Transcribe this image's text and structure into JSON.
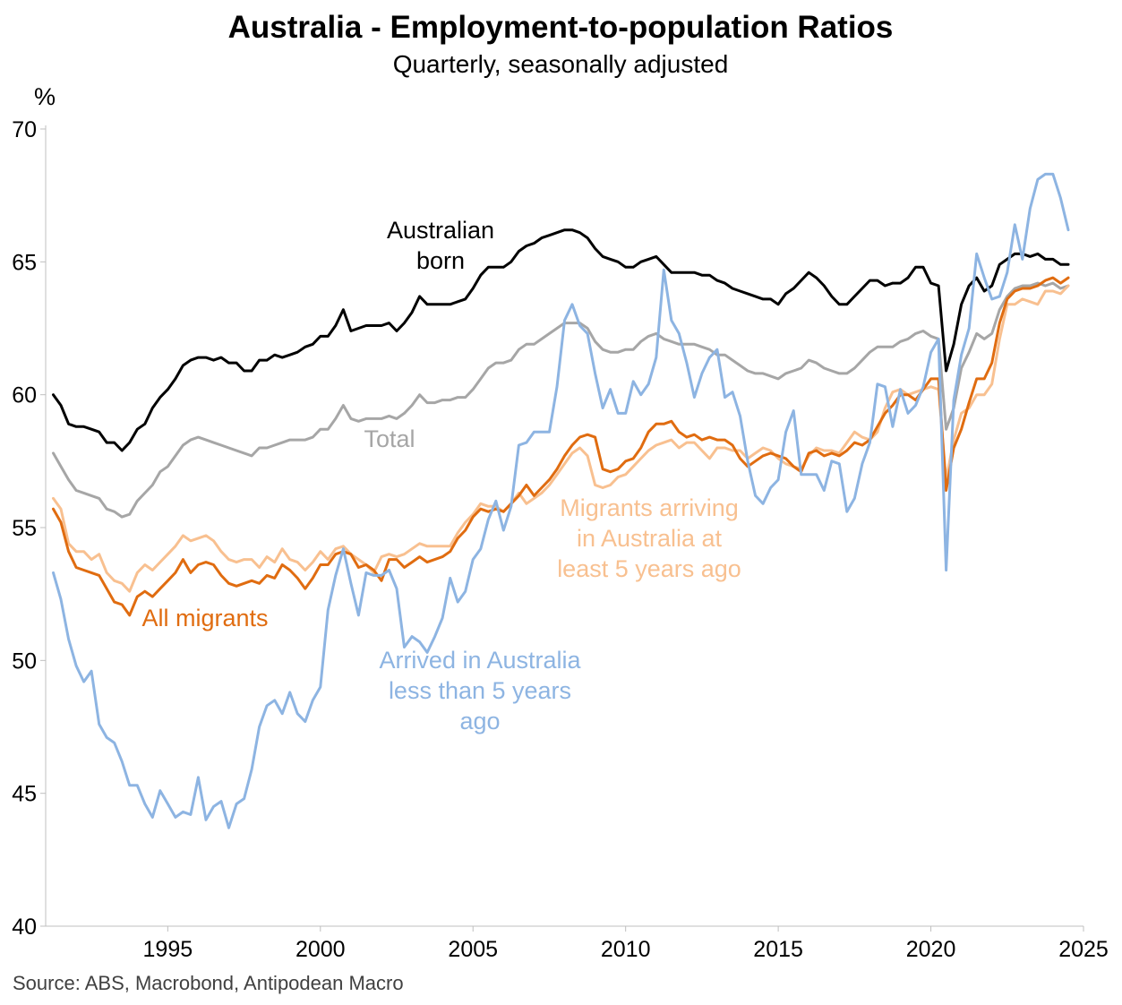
{
  "chart_data": {
    "type": "line",
    "title": "Australia - Employment-to-population Ratios",
    "subtitle": "Quarterly, seasonally adjusted",
    "ylabel": "%",
    "ylim": [
      40,
      70
    ],
    "xlim": [
      1991.0,
      2025.0
    ],
    "y_ticks": [
      "40",
      "45",
      "50",
      "55",
      "60",
      "65",
      "70"
    ],
    "x_ticks": [
      "1995",
      "2000",
      "2005",
      "2010",
      "2015",
      "2020",
      "2025"
    ],
    "grid": false,
    "legend": "none (series labelled directly on chart)",
    "source": "Source: ABS, Macrobond, Antipodean Macro",
    "x": [
      1991.25,
      1991.5,
      1991.75,
      1992.0,
      1992.25,
      1992.5,
      1992.75,
      1993.0,
      1993.25,
      1993.5,
      1993.75,
      1994.0,
      1994.25,
      1994.5,
      1994.75,
      1995.0,
      1995.25,
      1995.5,
      1995.75,
      1996.0,
      1996.25,
      1996.5,
      1996.75,
      1997.0,
      1997.25,
      1997.5,
      1997.75,
      1998.0,
      1998.25,
      1998.5,
      1998.75,
      1999.0,
      1999.25,
      1999.5,
      1999.75,
      2000.0,
      2000.25,
      2000.5,
      2000.75,
      2001.0,
      2001.25,
      2001.5,
      2001.75,
      2002.0,
      2002.25,
      2002.5,
      2002.75,
      2003.0,
      2003.25,
      2003.5,
      2003.75,
      2004.0,
      2004.25,
      2004.5,
      2004.75,
      2005.0,
      2005.25,
      2005.5,
      2005.75,
      2006.0,
      2006.25,
      2006.5,
      2006.75,
      2007.0,
      2007.25,
      2007.5,
      2007.75,
      2008.0,
      2008.25,
      2008.5,
      2008.75,
      2009.0,
      2009.25,
      2009.5,
      2009.75,
      2010.0,
      2010.25,
      2010.5,
      2010.75,
      2011.0,
      2011.25,
      2011.5,
      2011.75,
      2012.0,
      2012.25,
      2012.5,
      2012.75,
      2013.0,
      2013.25,
      2013.5,
      2013.75,
      2014.0,
      2014.25,
      2014.5,
      2014.75,
      2015.0,
      2015.25,
      2015.5,
      2015.75,
      2016.0,
      2016.25,
      2016.5,
      2016.75,
      2017.0,
      2017.25,
      2017.5,
      2017.75,
      2018.0,
      2018.25,
      2018.5,
      2018.75,
      2019.0,
      2019.25,
      2019.5,
      2019.75,
      2020.0,
      2020.25,
      2020.5,
      2020.75,
      2021.0,
      2021.25,
      2021.5,
      2021.75,
      2022.0,
      2022.25,
      2022.5,
      2022.75,
      2023.0,
      2023.25,
      2023.5,
      2023.75,
      2024.0,
      2024.25,
      2024.5
    ],
    "series": [
      {
        "name": "Australian born",
        "color": "#000000",
        "label_text": [
          "Australian",
          "born"
        ],
        "values": [
          60.0,
          59.6,
          58.9,
          58.8,
          58.8,
          58.7,
          58.6,
          58.2,
          58.2,
          57.9,
          58.2,
          58.7,
          58.9,
          59.5,
          59.9,
          60.2,
          60.6,
          61.1,
          61.3,
          61.4,
          61.4,
          61.3,
          61.4,
          61.2,
          61.2,
          60.9,
          60.9,
          61.3,
          61.3,
          61.5,
          61.4,
          61.5,
          61.6,
          61.8,
          61.9,
          62.2,
          62.2,
          62.6,
          63.2,
          62.4,
          62.5,
          62.6,
          62.6,
          62.6,
          62.7,
          62.4,
          62.7,
          63.1,
          63.7,
          63.4,
          63.4,
          63.4,
          63.4,
          63.5,
          63.6,
          64.0,
          64.5,
          64.8,
          64.8,
          64.8,
          65.0,
          65.4,
          65.6,
          65.7,
          65.9,
          66.0,
          66.1,
          66.2,
          66.2,
          66.1,
          65.9,
          65.5,
          65.2,
          65.1,
          65.0,
          64.8,
          64.8,
          65.0,
          65.1,
          65.2,
          64.9,
          64.6,
          64.6,
          64.6,
          64.6,
          64.5,
          64.5,
          64.3,
          64.2,
          64.0,
          63.9,
          63.8,
          63.7,
          63.6,
          63.6,
          63.4,
          63.8,
          64.0,
          64.3,
          64.6,
          64.4,
          64.1,
          63.7,
          63.4,
          63.4,
          63.7,
          64.0,
          64.3,
          64.3,
          64.1,
          64.2,
          64.2,
          64.4,
          64.8,
          64.8,
          64.2,
          64.1,
          60.9,
          61.9,
          63.4,
          64.1,
          64.4,
          63.9,
          64.1,
          64.9,
          65.1,
          65.3,
          65.3,
          65.2,
          65.3,
          65.1,
          65.1,
          64.9,
          64.9
        ]
      },
      {
        "name": "Total",
        "color": "#a6a6a6",
        "label_text": [
          "Total"
        ],
        "values": [
          57.8,
          57.3,
          56.8,
          56.4,
          56.3,
          56.2,
          56.1,
          55.7,
          55.6,
          55.4,
          55.5,
          56.0,
          56.3,
          56.6,
          57.1,
          57.3,
          57.7,
          58.1,
          58.3,
          58.4,
          58.3,
          58.2,
          58.1,
          58.0,
          57.9,
          57.8,
          57.7,
          58.0,
          58.0,
          58.1,
          58.2,
          58.3,
          58.3,
          58.3,
          58.4,
          58.7,
          58.7,
          59.1,
          59.6,
          59.1,
          59.0,
          59.1,
          59.1,
          59.1,
          59.2,
          59.1,
          59.3,
          59.6,
          60.0,
          59.7,
          59.7,
          59.8,
          59.8,
          59.9,
          59.9,
          60.2,
          60.6,
          61.0,
          61.2,
          61.2,
          61.3,
          61.7,
          61.9,
          61.9,
          62.1,
          62.3,
          62.5,
          62.7,
          62.7,
          62.7,
          62.5,
          62.0,
          61.7,
          61.6,
          61.6,
          61.7,
          61.7,
          62.0,
          62.2,
          62.3,
          62.1,
          62.0,
          61.9,
          61.9,
          61.9,
          61.8,
          61.7,
          61.5,
          61.5,
          61.3,
          61.1,
          60.9,
          60.8,
          60.8,
          60.7,
          60.6,
          60.8,
          60.9,
          61.0,
          61.3,
          61.2,
          61.0,
          60.9,
          60.8,
          60.8,
          61.0,
          61.3,
          61.6,
          61.8,
          61.8,
          61.8,
          62.0,
          62.1,
          62.3,
          62.4,
          62.2,
          62.1,
          58.7,
          59.5,
          61.0,
          61.6,
          62.3,
          62.1,
          62.3,
          63.2,
          63.7,
          64.0,
          64.1,
          64.1,
          64.2,
          64.1,
          64.2,
          64.0,
          64.1
        ]
      },
      {
        "name": "Migrants arriving in Australia at least 5 years ago",
        "color": "#f8c090",
        "label_text": [
          "Migrants arriving",
          "in Australia at",
          "least 5 years ago"
        ],
        "values": [
          56.1,
          55.7,
          54.4,
          54.1,
          54.1,
          53.8,
          54.0,
          53.3,
          53.0,
          52.9,
          52.6,
          53.3,
          53.6,
          53.4,
          53.7,
          54.0,
          54.3,
          54.7,
          54.5,
          54.6,
          54.7,
          54.5,
          54.1,
          53.8,
          53.7,
          53.8,
          53.8,
          53.5,
          53.9,
          53.7,
          54.2,
          53.8,
          53.7,
          53.4,
          53.7,
          54.1,
          53.8,
          54.2,
          54.3,
          54.0,
          53.8,
          53.6,
          53.3,
          53.9,
          54.0,
          53.9,
          54.0,
          54.2,
          54.4,
          54.3,
          54.3,
          54.3,
          54.3,
          54.8,
          55.2,
          55.5,
          55.9,
          55.8,
          55.8,
          55.6,
          55.9,
          56.3,
          55.9,
          56.1,
          56.3,
          56.6,
          57.0,
          57.4,
          57.8,
          58.0,
          57.7,
          56.6,
          56.5,
          56.6,
          56.9,
          57.0,
          57.3,
          57.6,
          57.9,
          58.1,
          58.2,
          58.3,
          58.0,
          58.2,
          58.2,
          57.9,
          57.6,
          58.0,
          58.0,
          57.9,
          57.9,
          57.6,
          57.8,
          58.0,
          57.9,
          57.6,
          57.4,
          57.3,
          57.2,
          57.7,
          58.0,
          57.9,
          57.9,
          57.8,
          58.2,
          58.6,
          58.4,
          58.3,
          58.6,
          59.5,
          60.1,
          60.2,
          60.0,
          60.1,
          60.2,
          60.3,
          60.2,
          56.8,
          58.3,
          59.3,
          59.5,
          60.0,
          60.0,
          60.4,
          62.1,
          63.4,
          63.4,
          63.6,
          63.5,
          63.4,
          63.9,
          63.9,
          63.8,
          64.1
        ]
      },
      {
        "name": "All migrants",
        "color": "#e06c10",
        "label_text": [
          "All migrants"
        ],
        "values": [
          55.7,
          55.2,
          54.1,
          53.5,
          53.4,
          53.3,
          53.2,
          52.7,
          52.2,
          52.1,
          51.7,
          52.4,
          52.6,
          52.4,
          52.7,
          53.0,
          53.3,
          53.8,
          53.3,
          53.6,
          53.7,
          53.6,
          53.2,
          52.9,
          52.8,
          52.9,
          53.0,
          52.9,
          53.2,
          53.1,
          53.6,
          53.4,
          53.1,
          52.7,
          53.1,
          53.6,
          53.6,
          54.0,
          54.1,
          54.0,
          53.5,
          53.6,
          53.4,
          53.0,
          53.8,
          53.8,
          53.5,
          53.7,
          53.9,
          53.7,
          53.8,
          53.9,
          54.1,
          54.6,
          54.9,
          55.4,
          55.7,
          55.6,
          55.7,
          55.6,
          55.9,
          56.2,
          56.6,
          56.2,
          56.5,
          56.8,
          57.2,
          57.7,
          58.1,
          58.4,
          58.5,
          58.4,
          57.2,
          57.1,
          57.2,
          57.5,
          57.6,
          58.0,
          58.6,
          58.9,
          58.9,
          59.0,
          58.6,
          58.4,
          58.5,
          58.3,
          58.4,
          58.3,
          58.3,
          58.1,
          57.6,
          57.3,
          57.5,
          57.7,
          57.8,
          57.7,
          57.6,
          57.3,
          57.1,
          57.8,
          57.9,
          57.7,
          57.8,
          57.7,
          57.9,
          58.2,
          58.1,
          58.3,
          58.8,
          59.3,
          59.6,
          60.0,
          60.0,
          59.8,
          60.2,
          60.6,
          60.6,
          56.4,
          58.0,
          58.7,
          59.7,
          60.6,
          60.6,
          61.2,
          62.7,
          63.6,
          63.9,
          64.0,
          64.0,
          64.1,
          64.3,
          64.4,
          64.2,
          64.4
        ]
      },
      {
        "name": "Arrived in Australia less than 5 years ago",
        "color": "#8db4e2",
        "label_text": [
          "Arrived in Australia",
          "less than 5 years",
          "ago"
        ],
        "values": [
          53.3,
          52.3,
          50.8,
          49.8,
          49.2,
          49.6,
          47.6,
          47.1,
          46.9,
          46.2,
          45.3,
          45.3,
          44.6,
          44.1,
          45.1,
          44.6,
          44.1,
          44.3,
          44.2,
          45.6,
          44.0,
          44.5,
          44.7,
          43.7,
          44.6,
          44.8,
          45.9,
          47.5,
          48.3,
          48.5,
          48.0,
          48.8,
          48.0,
          47.7,
          48.5,
          49.0,
          51.9,
          53.2,
          54.2,
          52.9,
          51.7,
          53.3,
          53.2,
          53.2,
          53.4,
          52.7,
          50.5,
          50.9,
          50.7,
          50.3,
          50.9,
          51.6,
          53.1,
          52.2,
          52.6,
          53.8,
          54.2,
          55.3,
          56.0,
          54.9,
          55.8,
          58.1,
          58.2,
          58.6,
          58.6,
          58.6,
          60.3,
          62.8,
          63.4,
          62.6,
          62.3,
          60.8,
          59.5,
          60.2,
          59.3,
          59.3,
          60.5,
          60.0,
          60.4,
          61.4,
          64.7,
          62.8,
          62.3,
          61.2,
          59.9,
          60.8,
          61.4,
          61.7,
          59.9,
          60.1,
          59.2,
          57.5,
          56.2,
          55.9,
          56.5,
          56.8,
          58.6,
          59.4,
          57.0,
          57.0,
          57.0,
          56.4,
          57.5,
          57.4,
          55.6,
          56.1,
          57.4,
          58.2,
          60.4,
          60.3,
          58.8,
          60.2,
          59.3,
          59.6,
          60.3,
          61.6,
          62.1,
          53.4,
          59.8,
          61.5,
          62.5,
          65.3,
          64.4,
          63.6,
          63.7,
          64.6,
          66.4,
          65.1,
          67.0,
          68.1,
          68.3,
          68.3,
          67.4,
          66.2
        ]
      }
    ]
  }
}
